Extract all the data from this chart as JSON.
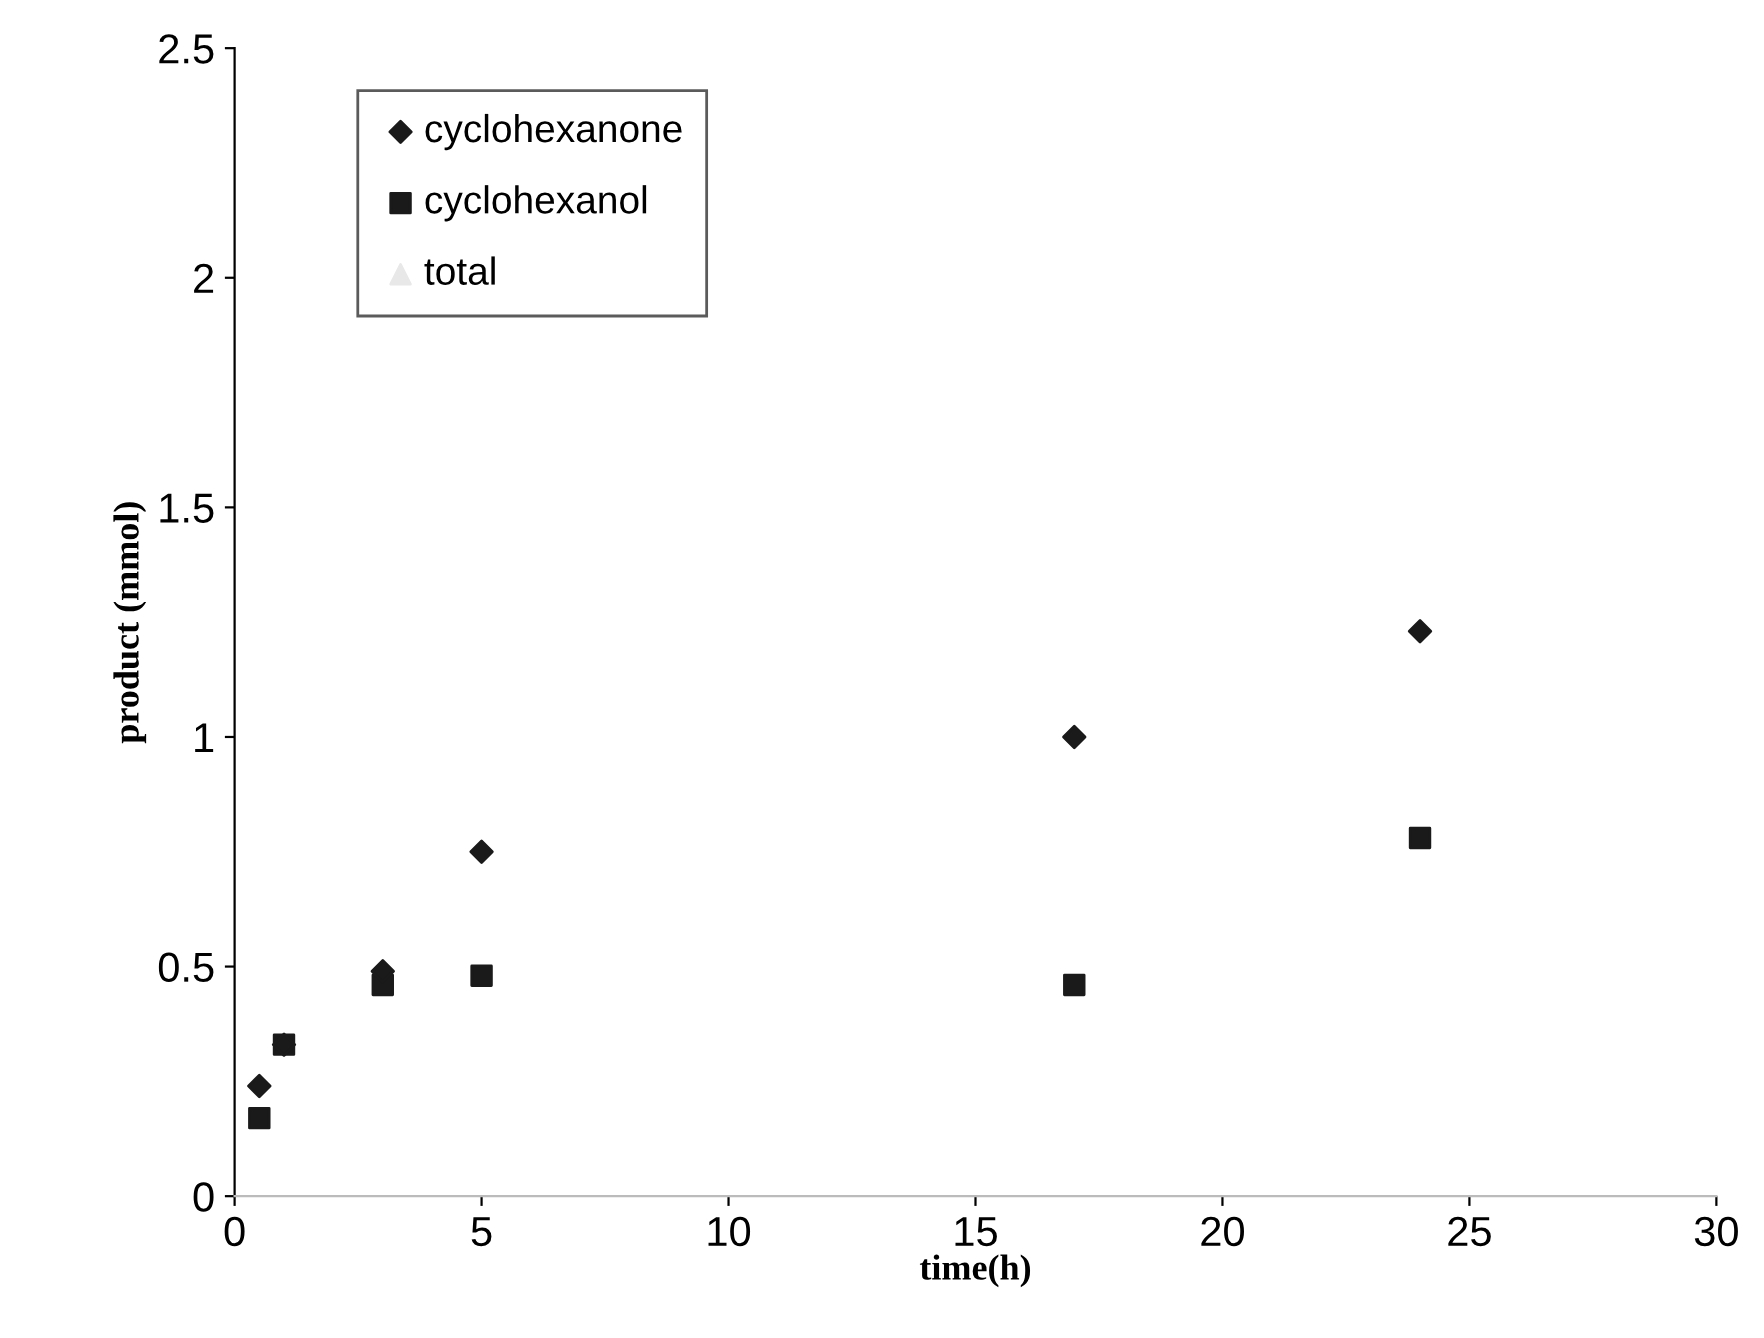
{
  "chart_data": {
    "type": "scatter",
    "xlabel": "time(h)",
    "ylabel": "product (mmol)",
    "xlim": [
      0,
      30
    ],
    "xticks": [
      0,
      5,
      10,
      15,
      20,
      25,
      30
    ],
    "ylim": [
      0,
      2.5
    ],
    "yticks": [
      0,
      0.5,
      1,
      1.5,
      2,
      2.5
    ],
    "x": [
      0.5,
      1,
      3,
      5,
      17,
      24
    ],
    "series": [
      {
        "name": "cyclohexanone",
        "color": "#1a1a1a",
        "marker": "diamond",
        "values": [
          0.24,
          0.33,
          0.49,
          0.75,
          1.0,
          1.23
        ]
      },
      {
        "name": "cyclohexanol",
        "color": "#1a1a1a",
        "marker": "square",
        "values": [
          0.17,
          0.33,
          0.46,
          0.48,
          0.46,
          0.78
        ]
      },
      {
        "name": "total",
        "color": "#e8e8e8",
        "marker": "triangle",
        "values": [
          null,
          null,
          null,
          null,
          null,
          null
        ]
      }
    ],
    "grid": false,
    "legend": "top left"
  }
}
